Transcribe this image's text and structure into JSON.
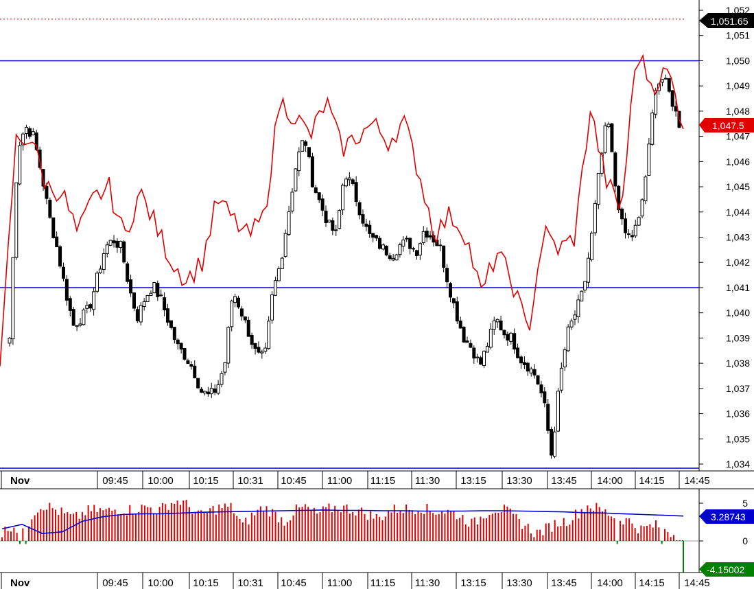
{
  "chart_data": [
    {
      "type": "candlestick",
      "panel": "price",
      "ylim": [
        1033.8,
        1052.0
      ],
      "y_ticks": [
        "1,052",
        "1,051",
        "1,050",
        "1,049",
        "1,048",
        "1,047",
        "1,046",
        "1,045",
        "1,044",
        "1,043",
        "1,042",
        "1,041",
        "1,040",
        "1,039",
        "1,038",
        "1,037",
        "1,036",
        "1,035",
        "1,034"
      ],
      "y_tick_values": [
        1052,
        1051,
        1050,
        1049,
        1048,
        1047,
        1046,
        1045,
        1044,
        1043,
        1042,
        1041,
        1040,
        1039,
        1038,
        1037,
        1036,
        1035,
        1034
      ],
      "x_date_label": "Nov",
      "x_labels": [
        "09:45",
        "10:00",
        "10:15",
        "10:31",
        "10:45",
        "11:00",
        "11:15",
        "11:30",
        "13:15",
        "13:30",
        "13:45",
        "14:00",
        "14:15",
        "14:45"
      ],
      "close_anchors": [
        1039.0,
        1046.5,
        1047.4,
        1047.0,
        1045.5,
        1043.8,
        1042.5,
        1040.9,
        1039.5,
        1039.8,
        1040.2,
        1041.4,
        1042.6,
        1042.9,
        1042.6,
        1041.0,
        1039.8,
        1040.6,
        1041.1,
        1040.5,
        1039.6,
        1038.7,
        1038.3,
        1037.8,
        1036.9,
        1036.7,
        1037.0,
        1038.0,
        1040.9,
        1040.1,
        1039.2,
        1038.3,
        1038.2,
        1040.8,
        1042.0,
        1044.0,
        1046.0,
        1047.0,
        1045.2,
        1044.3,
        1043.5,
        1043.1,
        1045.6,
        1045.0,
        1044.0,
        1043.1,
        1042.8,
        1042.5,
        1042.3,
        1042.7,
        1042.8,
        1042.4,
        1043.3,
        1043.0,
        1042.6,
        1041.2,
        1040.0,
        1039.0,
        1038.6,
        1037.9,
        1038.8,
        1039.8,
        1039.2,
        1039.0,
        1038.2,
        1037.9,
        1037.5,
        1036.5,
        1034.3,
        1037.3,
        1039.2,
        1040.0,
        1040.9,
        1043.0,
        1045.7,
        1047.8,
        1045.0,
        1043.2,
        1043.0,
        1043.7,
        1045.9,
        1049.0,
        1049.3,
        1048.5,
        1047.5
      ],
      "horizontal_lines": [
        1050.0,
        1041.0,
        1033.9
      ],
      "dotted_line": 1051.65,
      "labels": {
        "last_price": "1,047.5",
        "dotted_level": "1,051.65"
      },
      "colors": {
        "price_line": "#e00000",
        "hline": "#0000cc",
        "dotted": "#cc0000",
        "up_candle": "#ffffff",
        "down_candle": "#000000",
        "last_price_badge": "#e00000",
        "dotted_badge": "#000000"
      }
    },
    {
      "type": "bar",
      "panel": "oscillator",
      "ylim": [
        -4.3,
        5.8
      ],
      "y_ticks": [
        "5",
        "0"
      ],
      "y_tick_values": [
        5,
        0
      ],
      "x_date_label": "Nov",
      "x_labels": [
        "09:45",
        "10:00",
        "10:15",
        "10:31",
        "10:45",
        "11:00",
        "11:15",
        "11:30",
        "13:15",
        "13:30",
        "13:45",
        "14:00",
        "14:15",
        "14:45"
      ],
      "labels": {
        "signal_value": "3.28743",
        "last_value": "-4.15002"
      },
      "colors": {
        "bar_positive": "#e00000",
        "bar_negative": "#008000",
        "signal_line": "#0000cc",
        "signal_badge": "#0000cc",
        "last_badge": "#008000"
      }
    }
  ]
}
